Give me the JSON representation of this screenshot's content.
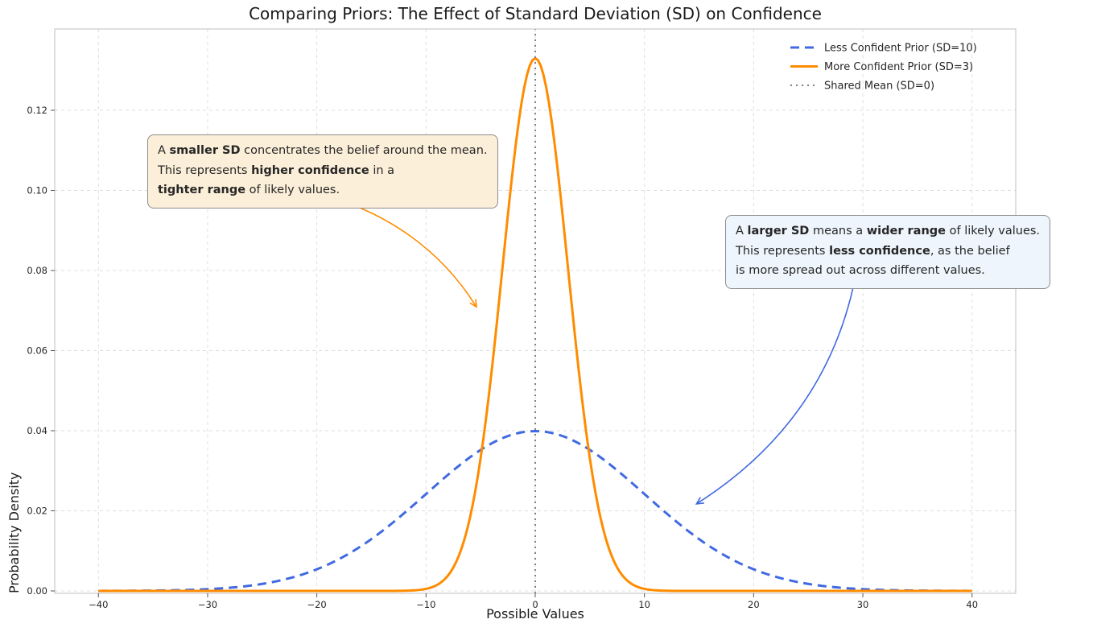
{
  "chart_data": {
    "type": "line",
    "title": "Comparing Priors: The Effect of Standard Deviation (SD) on Confidence",
    "xlabel": "Possible Values",
    "ylabel": "Probability Density",
    "xlim": [
      -44,
      44
    ],
    "ylim": [
      -0.0006,
      0.1403
    ],
    "xticks": [
      -40,
      -30,
      -20,
      -10,
      0,
      10,
      20,
      30,
      40
    ],
    "yticks": [
      0.0,
      0.02,
      0.04,
      0.06,
      0.08,
      0.1,
      0.12
    ],
    "grid": true,
    "legend_position": "upper right",
    "series": [
      {
        "name": "Less Confident Prior (SD=10)",
        "kind": "gaussian",
        "mean": 0,
        "sd": 10,
        "peak_density": 0.039894,
        "color": "#4169E1",
        "linestyle": "dashed",
        "linewidth": 3,
        "x_range": [
          -40,
          40
        ],
        "sample_points": {
          "x": [
            -40,
            -35,
            -30,
            -25,
            -20,
            -15,
            -10,
            -5,
            0,
            5,
            10,
            15,
            20,
            25,
            30,
            35,
            40
          ],
          "y": [
            1.3e-05,
            8.7e-05,
            0.000443,
            0.001753,
            0.005399,
            0.012952,
            0.024197,
            0.035207,
            0.039894,
            0.035207,
            0.024197,
            0.012952,
            0.005399,
            0.001753,
            0.000443,
            8.7e-05,
            1.3e-05
          ]
        }
      },
      {
        "name": "More Confident Prior (SD=3)",
        "kind": "gaussian",
        "mean": 0,
        "sd": 3,
        "peak_density": 0.132981,
        "color": "#FF8C00",
        "linestyle": "solid",
        "linewidth": 3,
        "x_range": [
          -40,
          40
        ],
        "sample_points": {
          "x": [
            -10,
            -9,
            -8,
            -7,
            -6,
            -5,
            -4,
            -3,
            -2,
            -1,
            0,
            1,
            2,
            3,
            4,
            5,
            6,
            7,
            8,
            9,
            10
          ],
          "y": [
            0.000515,
            0.001477,
            0.003798,
            0.008736,
            0.017997,
            0.033159,
            0.05467,
            0.080657,
            0.106483,
            0.125794,
            0.132981,
            0.125794,
            0.106483,
            0.080657,
            0.05467,
            0.033159,
            0.017997,
            0.008736,
            0.003798,
            0.001477,
            0.000515
          ]
        }
      },
      {
        "name": "Shared Mean (SD=0)",
        "kind": "vline",
        "x": 0,
        "color": "#7f7f7f",
        "linestyle": "dotted",
        "linewidth": 2
      }
    ],
    "annotations": [
      {
        "id": "smaller-sd",
        "bg_color": "#fcefd9",
        "border_color": "#8c8c8c",
        "arrow_color": "#FF8C00",
        "target_xy": [
          -5.4,
          0.071
        ],
        "lines": [
          [
            {
              "t": "A ",
              "b": false
            },
            {
              "t": "smaller SD",
              "b": true
            },
            {
              "t": " concentrates the belief around the mean.",
              "b": false
            }
          ],
          [
            {
              "t": "This represents ",
              "b": false
            },
            {
              "t": "higher confidence",
              "b": true
            },
            {
              "t": " in a",
              "b": false
            }
          ],
          [
            {
              "t": "tighter range",
              "b": true
            },
            {
              "t": " of likely values.",
              "b": false
            }
          ]
        ]
      },
      {
        "id": "larger-sd",
        "bg_color": "#eef5fc",
        "border_color": "#8c8c8c",
        "arrow_color": "#4169E1",
        "target_xy": [
          14.8,
          0.0218
        ],
        "lines": [
          [
            {
              "t": "A ",
              "b": false
            },
            {
              "t": "larger SD",
              "b": true
            },
            {
              "t": " means a ",
              "b": false
            },
            {
              "t": "wider range",
              "b": true
            },
            {
              "t": " of likely values.",
              "b": false
            }
          ],
          [
            {
              "t": "This represents ",
              "b": false
            },
            {
              "t": "less confidence",
              "b": true
            },
            {
              "t": ", as the belief",
              "b": false
            }
          ],
          [
            {
              "t": "is more spread out across different values.",
              "b": false
            }
          ]
        ]
      }
    ]
  }
}
